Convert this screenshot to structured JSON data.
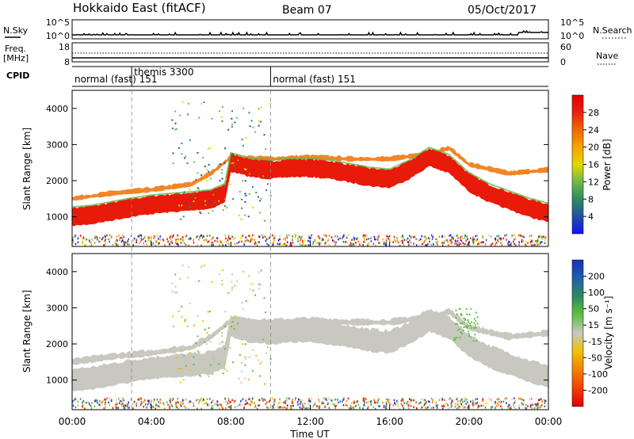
{
  "header": {
    "station": "Hokkaido East (fitACF)",
    "beam": "Beam 07",
    "date": "05/Oct/2017"
  },
  "strip_labels": {
    "nsky": "N.Sky",
    "nsearch": "N.Search",
    "freq_top": "Freq.",
    "freq_unit": "[MHz]",
    "nave": "Nave",
    "cpid": "CPID"
  },
  "noise_axis": {
    "left_ticks": [
      "10^5",
      "10^0"
    ],
    "right_ticks": [
      "10^5",
      "10^0"
    ]
  },
  "freq_axis": {
    "left_ticks": [
      "18",
      "8"
    ],
    "right_ticks": [
      "60",
      "0"
    ]
  },
  "cpid_segments": [
    {
      "label": "normal (fast) 151",
      "start_h": 0,
      "end_h": 3
    },
    {
      "label": "themis 3300",
      "start_h": 3,
      "end_h": 10
    },
    {
      "label": "normal (fast) 151",
      "start_h": 10,
      "end_h": 24
    }
  ],
  "x_axis": {
    "label": "Time UT",
    "ticks": [
      "00:00",
      "04:00",
      "08:00",
      "12:00",
      "16:00",
      "20:00",
      "00:00"
    ],
    "tick_hours": [
      0,
      4,
      8,
      12,
      16,
      20,
      24
    ]
  },
  "power_panel": {
    "ylabel": "Slant Range [km]",
    "yticks": [
      "1000",
      "2000",
      "3000",
      "4000"
    ],
    "ytick_values": [
      1000,
      2000,
      3000,
      4000
    ],
    "colorbar_label": "Power [dB]",
    "colorbar_ticks": [
      "4",
      "8",
      "12",
      "16",
      "20",
      "24",
      "28"
    ],
    "colorbar_colors": [
      "#1010ff",
      "#2050a0",
      "#2f8a5e",
      "#6fb84a",
      "#e6d800",
      "#f5a300",
      "#f06a00",
      "#e82010",
      "#e00000"
    ]
  },
  "velocity_panel": {
    "ylabel": "Slant Range [km]",
    "yticks": [
      "1000",
      "2000",
      "3000",
      "4000"
    ],
    "ytick_values": [
      1000,
      2000,
      3000,
      4000
    ],
    "colorbar_label": "Velocity [m s⁻¹]",
    "colorbar_ticks": [
      "200",
      "100",
      "50",
      "15",
      "-15",
      "-50",
      "-100",
      "-200"
    ],
    "colorbar_colors": [
      "#1a2fb8",
      "#1f5fb0",
      "#2f8a5e",
      "#60c040",
      "#c8c8c0",
      "#f0c000",
      "#f08000",
      "#f04000",
      "#e00000"
    ]
  },
  "chart_data": {
    "type": "heatmap",
    "y_range_km": [
      180,
      4500
    ],
    "x_range_hours": [
      0,
      24
    ],
    "echo_band_center_km": [
      [
        0,
        1000
      ],
      [
        1,
        1050
      ],
      [
        2,
        1150
      ],
      [
        3,
        1250
      ],
      [
        4,
        1330
      ],
      [
        5,
        1380
      ],
      [
        6,
        1420
      ],
      [
        7,
        1480
      ],
      [
        7.7,
        1650
      ],
      [
        8,
        2500
      ],
      [
        9,
        2350
      ],
      [
        10,
        2300
      ],
      [
        11,
        2350
      ],
      [
        12,
        2350
      ],
      [
        13,
        2300
      ],
      [
        14,
        2200
      ],
      [
        15,
        2100
      ],
      [
        16,
        2050
      ],
      [
        17,
        2300
      ],
      [
        18,
        2650
      ],
      [
        19,
        2450
      ],
      [
        20,
        1950
      ],
      [
        21,
        1650
      ],
      [
        22,
        1450
      ],
      [
        23,
        1250
      ],
      [
        24,
        1100
      ]
    ],
    "echo_band_width_km": 500,
    "upper_band_center_km": [
      [
        0,
        1500
      ],
      [
        2,
        1650
      ],
      [
        4,
        1750
      ],
      [
        6,
        1900
      ],
      [
        7,
        2200
      ],
      [
        8,
        2650
      ],
      [
        10,
        2600
      ],
      [
        12,
        2650
      ],
      [
        14,
        2600
      ],
      [
        16,
        2600
      ],
      [
        18,
        2750
      ],
      [
        19,
        2900
      ],
      [
        20,
        2450
      ],
      [
        22,
        2200
      ],
      [
        24,
        2300
      ]
    ],
    "power_db_range": [
      0,
      30
    ],
    "velocity_range": [
      -200,
      200
    ]
  }
}
